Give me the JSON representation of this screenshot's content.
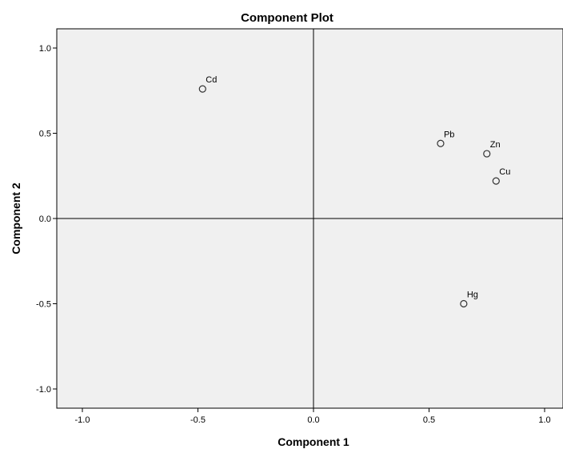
{
  "chart_data": {
    "type": "scatter",
    "title": "Component Plot",
    "xlabel": "Component 1",
    "ylabel": "Component 2",
    "xlim": [
      -1.1,
      1.1
    ],
    "ylim": [
      -1.1,
      1.1
    ],
    "xticks": [
      -1.0,
      -0.5,
      0.0,
      0.5,
      1.0
    ],
    "yticks": [
      -1.0,
      -0.5,
      0.0,
      0.5,
      1.0
    ],
    "xtick_labels": [
      "-1.0",
      "-0.5",
      "0.0",
      "0.5",
      "1.0"
    ],
    "ytick_labels": [
      "-1.0",
      "-0.5",
      "0.0",
      "0.5",
      "1.0"
    ],
    "grid": false,
    "reference_lines": {
      "x": 0,
      "y": 0
    },
    "plot_background": "#f0f0f0",
    "marker_color": "#333333",
    "points": [
      {
        "label": "Cd",
        "x": -0.48,
        "y": 0.76
      },
      {
        "label": "Pb",
        "x": 0.55,
        "y": 0.44
      },
      {
        "label": "Zn",
        "x": 0.75,
        "y": 0.38
      },
      {
        "label": "Cu",
        "x": 0.79,
        "y": 0.22
      },
      {
        "label": "Hg",
        "x": 0.65,
        "y": -0.5
      }
    ]
  }
}
